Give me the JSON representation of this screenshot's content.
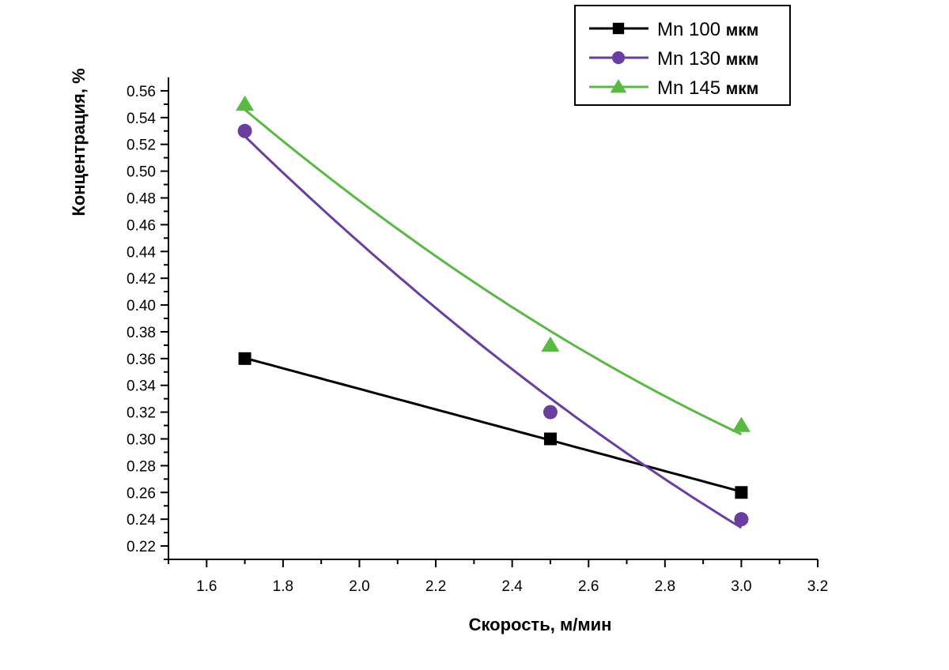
{
  "chart_data": {
    "type": "line",
    "title": "",
    "xlabel": "Скорость, м/мин",
    "ylabel": "Концентрация, %",
    "xlim": [
      1.5,
      3.2
    ],
    "ylim": [
      0.21,
      0.57
    ],
    "xticks": [
      "1.6",
      "1.8",
      "2.0",
      "2.2",
      "2.4",
      "2.6",
      "2.8",
      "3.0",
      "3.2"
    ],
    "yticks": [
      "0.22",
      "0.24",
      "0.26",
      "0.28",
      "0.30",
      "0.32",
      "0.34",
      "0.36",
      "0.38",
      "0.40",
      "0.42",
      "0.44",
      "0.46",
      "0.48",
      "0.50",
      "0.52",
      "0.54",
      "0.56"
    ],
    "grid": false,
    "legend_position": "top-right",
    "series": [
      {
        "name": "Mn 100",
        "unit": "мкм",
        "color": "#000000",
        "marker": "square",
        "x": [
          1.7,
          2.5,
          3.0
        ],
        "values": [
          0.36,
          0.3,
          0.26
        ],
        "fit": "linear"
      },
      {
        "name": "Mn 130",
        "unit": "мкм",
        "color": "#6a3ea1",
        "marker": "circle",
        "x": [
          1.7,
          2.5,
          3.0
        ],
        "values": [
          0.53,
          0.32,
          0.24
        ],
        "fit": "smooth"
      },
      {
        "name": "Mn 145",
        "unit": "мкм",
        "color": "#5ab945",
        "marker": "triangle",
        "x": [
          1.7,
          2.5,
          3.0
        ],
        "values": [
          0.55,
          0.37,
          0.31
        ],
        "fit": "smooth"
      }
    ]
  }
}
